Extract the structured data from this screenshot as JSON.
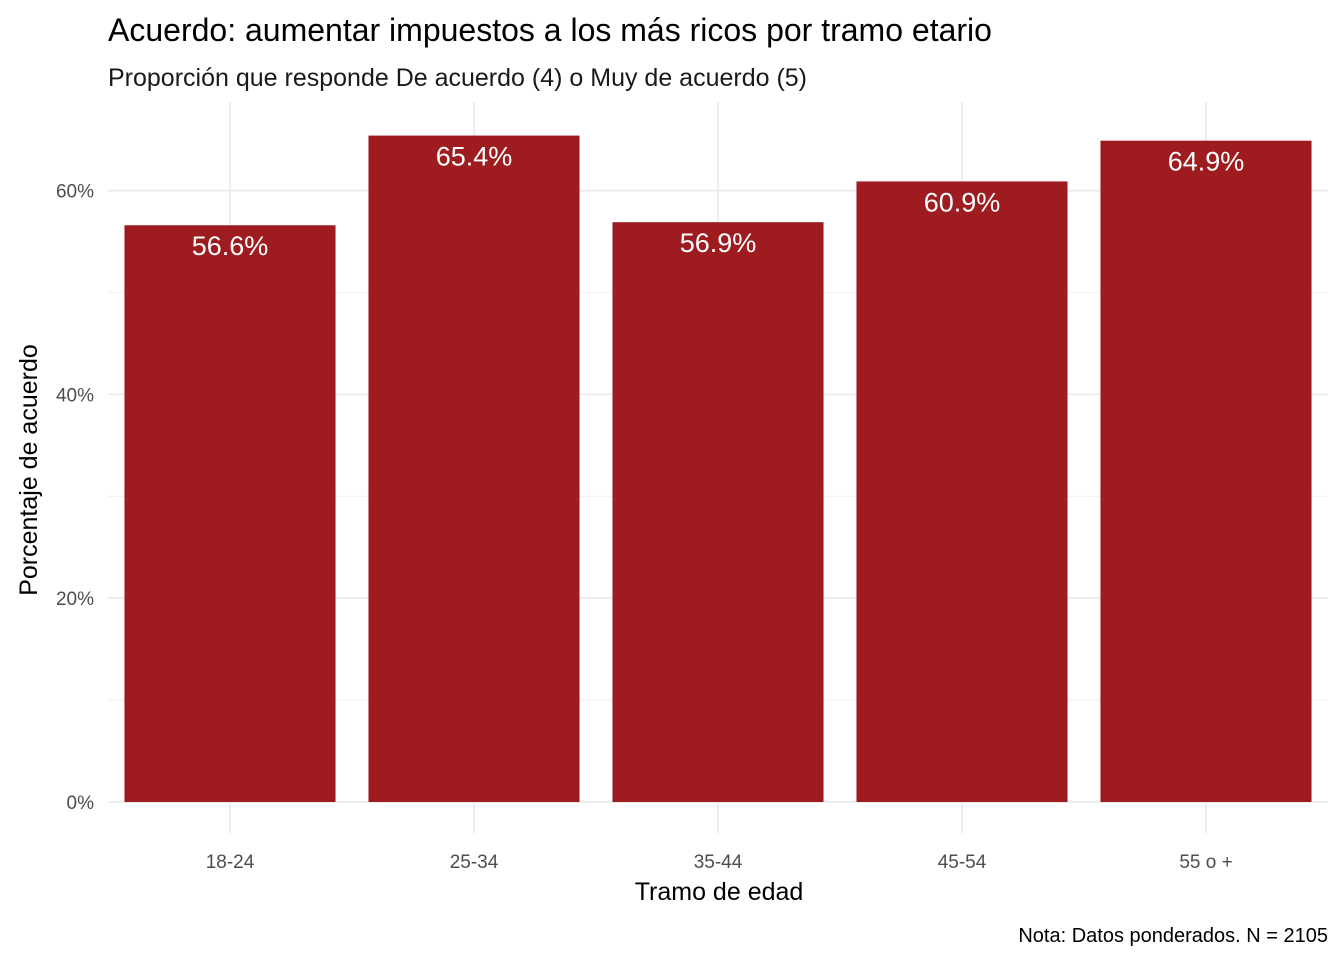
{
  "chart_data": {
    "type": "bar",
    "title": "Acuerdo: aumentar impuestos a los más ricos por tramo etario",
    "subtitle": "Proporción que responde De acuerdo (4) o Muy de acuerdo (5)",
    "xlabel": "Tramo de edad",
    "ylabel": "Porcentaje de acuerdo",
    "caption": "Nota: Datos ponderados. N = 2105",
    "categories": [
      "18-24",
      "25-34",
      "35-44",
      "45-54",
      "55 o +"
    ],
    "values": [
      56.6,
      65.4,
      56.9,
      60.9,
      64.9
    ],
    "data_labels": [
      "56.6%",
      "65.4%",
      "56.9%",
      "60.9%",
      "64.9%"
    ],
    "ylim": [
      0,
      68.67
    ],
    "y_ticks": [
      0,
      20,
      40,
      60
    ],
    "y_tick_labels": [
      "0%",
      "20%",
      "40%",
      "60%"
    ],
    "grid": true,
    "legend": "none",
    "colors": {
      "bar": "#9E1C20",
      "grid_major": "#EBEBEB",
      "grid_minor": "#F3F3F3",
      "background": "#FFFFFF"
    }
  }
}
